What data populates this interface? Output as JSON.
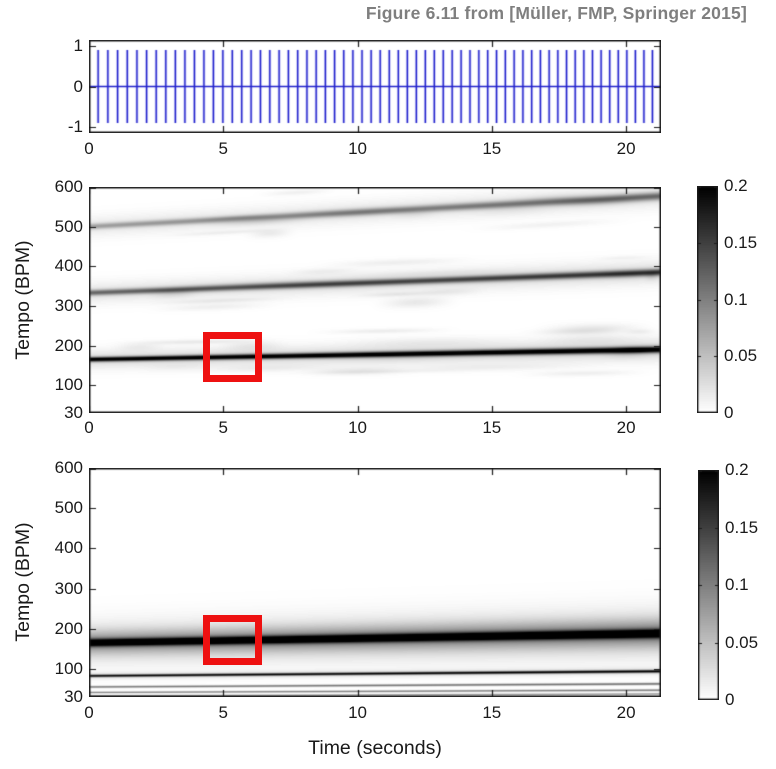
{
  "title": {
    "text": "Figure 6.11 from [Müller, FMP, Springer 2015]",
    "color": "#7f7f7f"
  },
  "chart_data": [
    {
      "id": "click-track-waveform",
      "type": "line",
      "title": "",
      "xlabel": "",
      "ylabel": "",
      "xlim": [
        0,
        21.3
      ],
      "ylim": [
        -1.15,
        1.15
      ],
      "xticks": [
        0,
        5,
        10,
        15,
        20
      ],
      "yticks": [
        1,
        0,
        -1
      ],
      "line_color": "#2222cc",
      "signal": {
        "description": "impulse click track, tempo increasing over time",
        "first_click_s": 0.34,
        "tempo_start_bpm": 165,
        "tempo_end_bpm": 190,
        "click_amplitude": 0.9,
        "baseline": 0
      }
    },
    {
      "id": "fourier-tempogram",
      "type": "heatmap",
      "title": "",
      "xlabel": "",
      "ylabel": "Tempo (BPM)",
      "xlim": [
        0,
        21.3
      ],
      "ylim": [
        30,
        600
      ],
      "xticks": [
        0,
        5,
        10,
        15,
        20
      ],
      "yticks": [
        600,
        500,
        400,
        300,
        200,
        100,
        30
      ],
      "colorbar": {
        "min": 0,
        "max": 0.2,
        "ticks": [
          0.2,
          0.15,
          0.1,
          0.05,
          0
        ]
      },
      "bands": [
        {
          "name": "tempo",
          "bpm_start": 165,
          "bpm_end": 190,
          "components": [
            [
              0.2,
              0.2,
              4,
              5.5
            ],
            [
              0.026,
              0.032,
              16,
              19
            ]
          ]
        },
        {
          "name": "harmonic-2x",
          "bpm_start": 333,
          "bpm_end": 385,
          "components": [
            [
              0.1,
              0.14,
              5,
              6
            ],
            [
              0.02,
              0.026,
              18,
              20
            ]
          ]
        },
        {
          "name": "harmonic-3x",
          "bpm_start": 500,
          "bpm_end": 577,
          "components": [
            [
              0.06,
              0.1,
              5,
              7
            ],
            [
              0.016,
              0.02,
              18,
              21
            ]
          ]
        }
      ],
      "noise_streaks": true,
      "highlight_box": {
        "t_start": 4.25,
        "t_end": 6.45,
        "bpm_low": 110,
        "bpm_high": 235,
        "color": "#ee1111"
      }
    },
    {
      "id": "autocorrelation-tempogram",
      "type": "heatmap",
      "title": "",
      "xlabel": "Time (seconds)",
      "ylabel": "Tempo (BPM)",
      "xlim": [
        0,
        21.3
      ],
      "ylim": [
        30,
        600
      ],
      "xticks": [
        0,
        5,
        10,
        15,
        20
      ],
      "yticks": [
        600,
        500,
        400,
        300,
        200,
        100,
        30
      ],
      "colorbar": {
        "min": 0,
        "max": 0.2,
        "ticks": [
          0.2,
          0.15,
          0.1,
          0.05,
          0
        ]
      },
      "bands": [
        {
          "name": "tempo",
          "bpm_start": 165,
          "bpm_end": 188,
          "components": [
            [
              0.2,
              0.2,
              6,
              7
            ],
            [
              0.07,
              0.08,
              20,
              24
            ],
            [
              0.022,
              0.026,
              40,
              46
            ]
          ]
        },
        {
          "name": "subharmonic-1-2",
          "bpm_start": 82.5,
          "bpm_end": 94,
          "components": [
            [
              0.17,
              0.18,
              2.2,
              2.5
            ],
            [
              0.02,
              0.02,
              6,
              7
            ]
          ]
        },
        {
          "name": "subharmonic-1-3",
          "bpm_start": 55,
          "bpm_end": 62.7,
          "components": [
            [
              0.1,
              0.11,
              1.8,
              2.0
            ]
          ]
        },
        {
          "name": "subharmonic-1-4",
          "bpm_start": 41.3,
          "bpm_end": 47.0,
          "components": [
            [
              0.09,
              0.1,
              1.6,
              1.8
            ]
          ]
        },
        {
          "name": "subharmonic-1-5",
          "bpm_start": 33,
          "bpm_end": 37.6,
          "components": [
            [
              0.07,
              0.08,
              1.4,
              1.6
            ]
          ]
        }
      ],
      "noise_streaks": false,
      "highlight_box": {
        "t_start": 4.25,
        "t_end": 6.45,
        "bpm_low": 110,
        "bpm_high": 235,
        "color": "#ee1111"
      }
    }
  ]
}
